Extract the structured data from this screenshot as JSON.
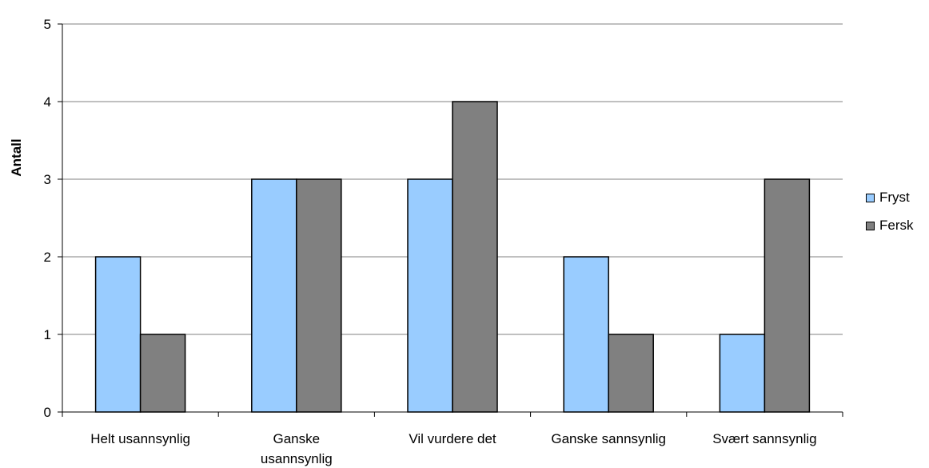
{
  "chart_data": {
    "type": "bar",
    "title": "",
    "xlabel": "",
    "ylabel": "Antall",
    "ylim": [
      0,
      5
    ],
    "yticks": [
      "0",
      "1",
      "2",
      "3",
      "4",
      "5"
    ],
    "grid": true,
    "legend_position": "right",
    "categories": [
      [
        "Helt usannsynlig"
      ],
      [
        "Ganske",
        "usannsynlig"
      ],
      [
        "Vil vurdere det"
      ],
      [
        "Ganske sannsynlig"
      ],
      [
        "Svært sannsynlig"
      ]
    ],
    "series": [
      {
        "name": "Fryst",
        "color": "#99ccff",
        "values": [
          2,
          3,
          3,
          2,
          1
        ]
      },
      {
        "name": "Fersk",
        "color": "#808080",
        "values": [
          1,
          3,
          4,
          1,
          3
        ]
      }
    ]
  }
}
